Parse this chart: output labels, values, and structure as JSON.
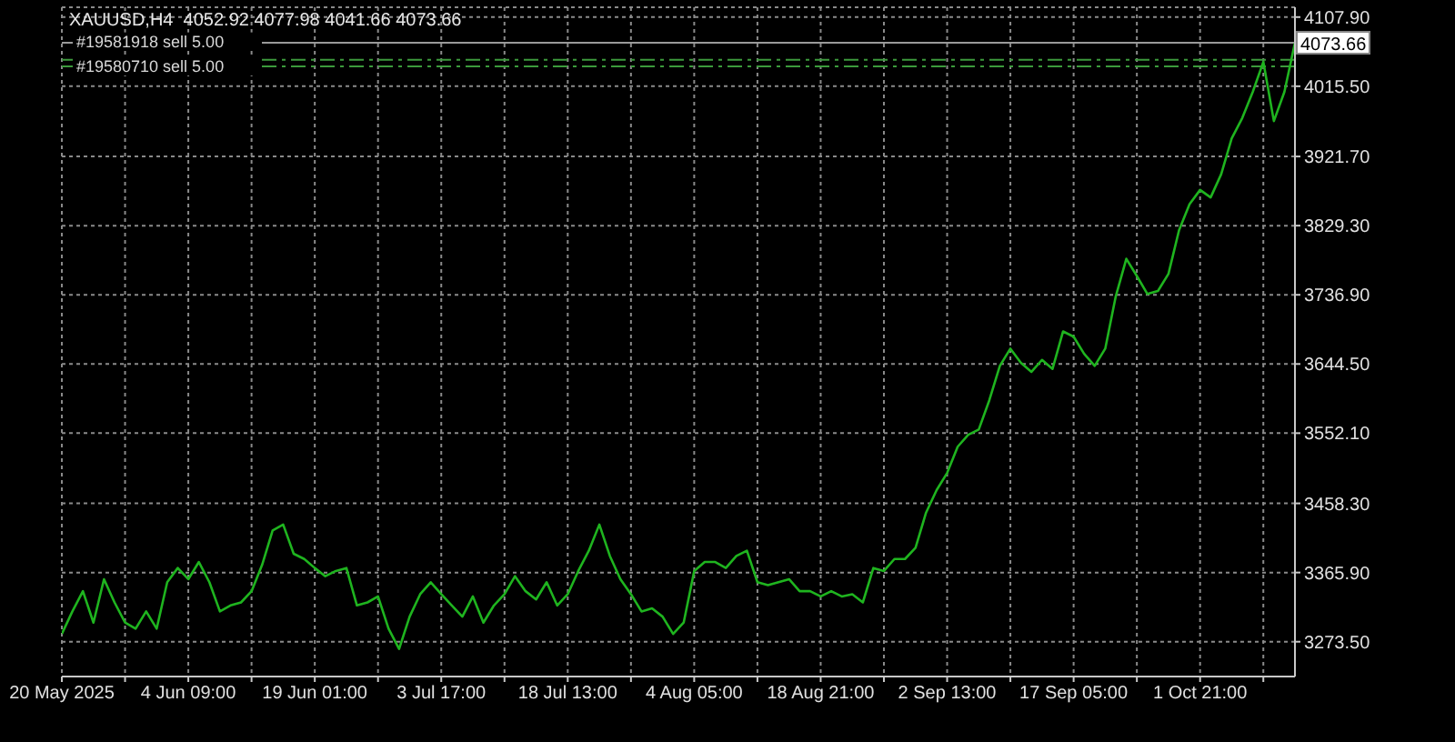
{
  "chart_data": {
    "type": "line",
    "title": "XAUUSD,H4  4052.92 4077.98 4041.66 4073.66",
    "categories": [
      "20 May 2025",
      null,
      null,
      null,
      null,
      null,
      null,
      null,
      null,
      null,
      null,
      null,
      "4 Jun 09:00",
      null,
      null,
      null,
      null,
      null,
      null,
      null,
      null,
      null,
      null,
      null,
      "19 Jun 01:00",
      null,
      null,
      null,
      null,
      null,
      null,
      null,
      null,
      null,
      null,
      null,
      "3 Jul 17:00",
      null,
      null,
      null,
      null,
      null,
      null,
      null,
      null,
      null,
      null,
      null,
      "18 Jul 13:00",
      null,
      null,
      null,
      null,
      null,
      null,
      null,
      null,
      null,
      null,
      null,
      "4 Aug 05:00",
      null,
      null,
      null,
      null,
      null,
      null,
      null,
      null,
      null,
      null,
      null,
      "18 Aug 21:00",
      null,
      null,
      null,
      null,
      null,
      null,
      null,
      null,
      null,
      null,
      null,
      "2 Sep 13:00",
      null,
      null,
      null,
      null,
      null,
      null,
      null,
      null,
      null,
      null,
      null,
      "17 Sep 05:00",
      null,
      null,
      null,
      null,
      null,
      null,
      null,
      null,
      null,
      null,
      null,
      "1 Oct 21:00",
      null,
      null,
      null,
      null,
      null,
      null,
      null,
      null,
      null
    ],
    "series": [
      {
        "color": "#1fb41f",
        "values": [
          3284,
          3314,
          3341,
          3299,
          3357,
          3326,
          3299,
          3291,
          3314,
          3291,
          3353,
          3372,
          3357,
          3380,
          3353,
          3314,
          3322,
          3326,
          3341,
          3376,
          3422,
          3430,
          3391,
          3384,
          3372,
          3361,
          3368,
          3372,
          3322,
          3326,
          3334,
          3291,
          3264,
          3307,
          3337,
          3353,
          3337,
          3322,
          3307,
          3334,
          3299,
          3322,
          3337,
          3361,
          3341,
          3330,
          3353,
          3322,
          3337,
          3368,
          3395,
          3430,
          3388,
          3357,
          3337,
          3314,
          3318,
          3307,
          3284,
          3299,
          3368,
          3380,
          3380,
          3372,
          3388,
          3395,
          3353,
          3349,
          3353,
          3357,
          3341,
          3341,
          3334,
          3341,
          3334,
          3337,
          3326,
          3372,
          3368,
          3384,
          3384,
          3399,
          3446,
          3476,
          3499,
          3534,
          3550,
          3557,
          3596,
          3642,
          3665,
          3646,
          3634,
          3650,
          3638,
          3688,
          3681,
          3658,
          3642,
          3665,
          3735,
          3785,
          3762,
          3738,
          3742,
          3765,
          3823,
          3858,
          3877,
          3867,
          3898,
          3946,
          3973,
          4008,
          4048,
          3969,
          4008,
          4073.66
        ]
      }
    ],
    "ylim": [
      3227,
      4121
    ],
    "yticks": [
      {
        "value": 3273.5,
        "label": "3273.50"
      },
      {
        "value": 3365.9,
        "label": "3365.90"
      },
      {
        "value": 3458.3,
        "label": "3458.30"
      },
      {
        "value": 3552.1,
        "label": "3552.10"
      },
      {
        "value": 3644.5,
        "label": "3644.50"
      },
      {
        "value": 3736.9,
        "label": "3736.90"
      },
      {
        "value": 3829.3,
        "label": "3829.30"
      },
      {
        "value": 3921.7,
        "label": "3921.70"
      },
      {
        "value": 4015.5,
        "label": "4015.50"
      },
      {
        "value": 4107.9,
        "label": "4107.90"
      }
    ],
    "ref_lines": [
      {
        "axis": "y",
        "value": 4073.66,
        "label": "4073.66",
        "color": "#9a9a9a",
        "line_style": "solid"
      },
      {
        "axis": "y",
        "value": 4051,
        "label": "#19581918 sell 5.00",
        "color": "#3c9a3c",
        "line_style": "dashed"
      },
      {
        "axis": "y",
        "value": 4042,
        "label": "#19580710 sell 5.00",
        "color": "#3c9a3c",
        "line_style": "dashed"
      }
    ],
    "grid": true,
    "marker": "none",
    "line_style": "solid"
  }
}
